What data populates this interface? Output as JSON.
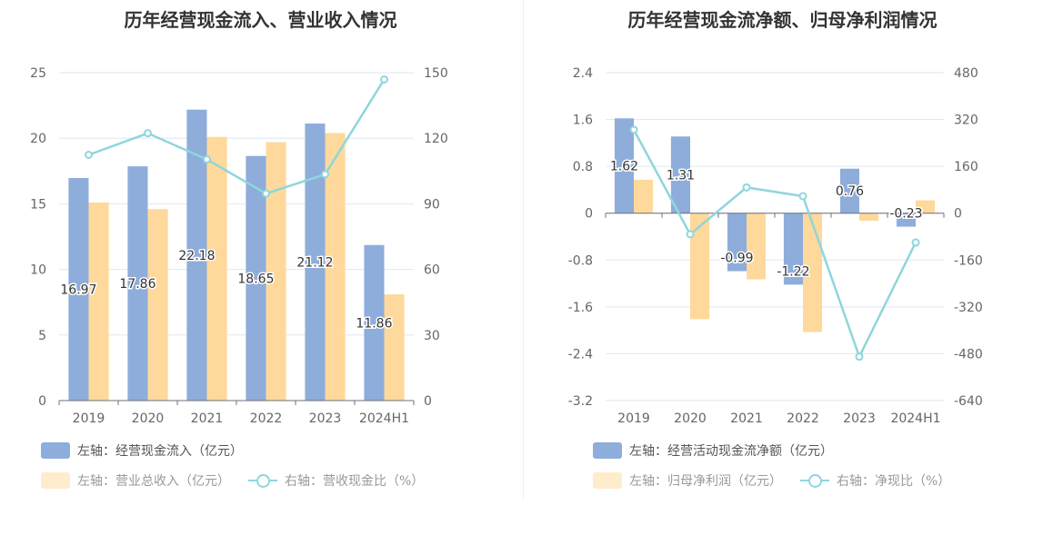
{
  "chart_data": [
    {
      "type": "bar",
      "title": "历年经营现金流入、营业收入情况",
      "categories": [
        "2019",
        "2020",
        "2021",
        "2022",
        "2023",
        "2024H1"
      ],
      "ylim_left": [
        0,
        25
      ],
      "left_ticks": [
        0,
        5,
        10,
        15,
        20,
        25
      ],
      "ylim_right": [
        0,
        150
      ],
      "right_ticks": [
        0,
        30,
        60,
        90,
        120,
        150
      ],
      "grid": true,
      "legend_position": "bottom-left",
      "series": [
        {
          "name": "左轴：经营现金流入（亿元）",
          "type": "bar",
          "axis": "left",
          "color": "#8eaddb",
          "values": [
            16.97,
            17.86,
            22.18,
            18.65,
            21.12,
            11.86
          ],
          "labels": [
            "16.97",
            "17.86",
            "22.18",
            "18.65",
            "21.12",
            "11.86"
          ]
        },
        {
          "name": "左轴：营业总收入（亿元）",
          "type": "bar",
          "axis": "left",
          "color": "#fed99b",
          "values": [
            15.1,
            14.6,
            20.1,
            19.7,
            20.4,
            8.1
          ]
        },
        {
          "name": "右轴：营收现金比（%）",
          "type": "line",
          "axis": "right",
          "color": "#8fd6db",
          "values": [
            112.4,
            122.3,
            110.3,
            94.7,
            103.5,
            146.9
          ]
        }
      ]
    },
    {
      "type": "bar",
      "title": "历年经营现金流净额、归母净利润情况",
      "categories": [
        "2019",
        "2020",
        "2021",
        "2022",
        "2023",
        "2024H1"
      ],
      "ylim_left": [
        -3.2,
        2.4
      ],
      "left_ticks": [
        "-3.2",
        "-2.4",
        "-1.6",
        "-0.8",
        "0",
        "0.8",
        "1.6",
        "2.4"
      ],
      "ylim_right": [
        -640,
        480
      ],
      "right_ticks": [
        "-640",
        "-480",
        "-320",
        "-160",
        "0",
        "160",
        "320",
        "480"
      ],
      "grid": true,
      "legend_position": "bottom-left",
      "series": [
        {
          "name": "左轴：经营活动现金流净额（亿元）",
          "type": "bar",
          "axis": "left",
          "color": "#8eaddb",
          "values": [
            1.62,
            1.31,
            -0.99,
            -1.22,
            0.76,
            -0.23
          ],
          "labels": [
            "1.62",
            "1.31",
            "-0.99",
            "-1.22",
            "0.76",
            "-0.23"
          ]
        },
        {
          "name": "左轴：归母净利润（亿元）",
          "type": "bar",
          "axis": "left",
          "color": "#fed99b",
          "values": [
            0.57,
            -1.81,
            -1.13,
            -2.03,
            -0.13,
            0.22
          ]
        },
        {
          "name": "右轴：净现比（%）",
          "type": "line",
          "axis": "right",
          "color": "#8fd6db",
          "values": [
            285,
            -72,
            88,
            58,
            -490,
            -100
          ]
        }
      ]
    }
  ]
}
